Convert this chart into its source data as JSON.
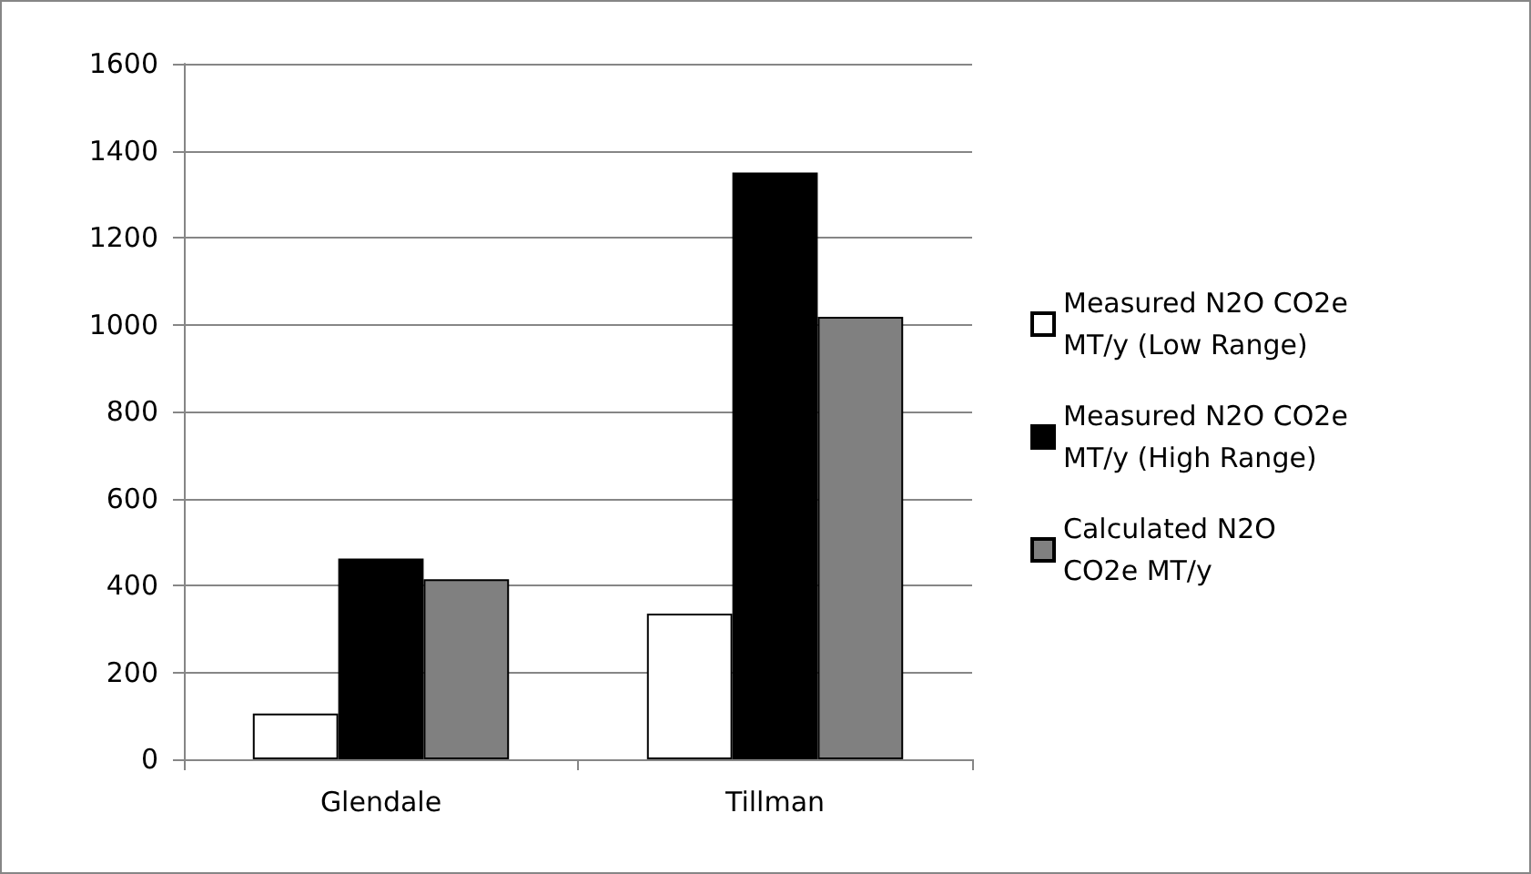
{
  "chart_data": {
    "type": "bar",
    "categories": [
      "Glendale",
      "Tillman"
    ],
    "series": [
      {
        "name": "Measured N2O CO2e MT/y (Low Range)",
        "color": "#ffffff",
        "values": [
          105,
          335
        ]
      },
      {
        "name": "Measured N2O CO2e MT/y (High Range)",
        "color": "#000000",
        "values": [
          462,
          1350
        ]
      },
      {
        "name": "Calculated N2O CO2e MT/y",
        "color": "#808080",
        "values": [
          414,
          1018
        ]
      }
    ],
    "ylim": [
      0,
      1600
    ],
    "yticks": [
      0,
      200,
      400,
      600,
      800,
      1000,
      1200,
      1400,
      1600
    ],
    "grid": "y",
    "legend": "right"
  }
}
